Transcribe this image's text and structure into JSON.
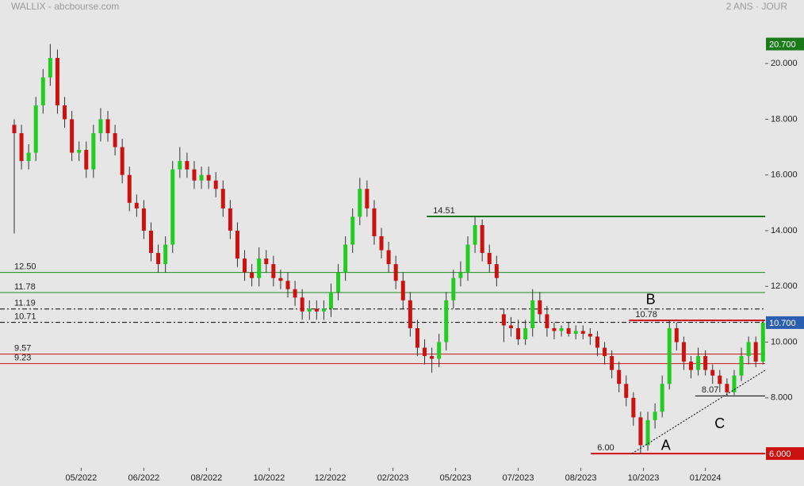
{
  "chart_data": {
    "type": "candlestick",
    "title": "WALLIX - abcbourse.com",
    "subtitle": "2 ANS · JOUR",
    "up_color": "#22cc22",
    "down_color": "#cc1111",
    "xlim": [
      -1.98,
      104.3
    ],
    "ylim": [
      5.49,
      22.28
    ],
    "xticks": [
      {
        "value": 9.3,
        "label": "05/2022"
      },
      {
        "value": 18.0,
        "label": "06/2022"
      },
      {
        "value": 26.7,
        "label": "08/2022"
      },
      {
        "value": 35.4,
        "label": "10/2022"
      },
      {
        "value": 43.9,
        "label": "12/2022"
      },
      {
        "value": 52.6,
        "label": "02/2023"
      },
      {
        "value": 61.3,
        "label": "05/2023"
      },
      {
        "value": 70.0,
        "label": "07/2023"
      },
      {
        "value": 78.7,
        "label": "08/2023"
      },
      {
        "value": 87.4,
        "label": "10/2023"
      },
      {
        "value": 96.0,
        "label": "01/2024"
      }
    ],
    "yticks": [
      {
        "value": 8,
        "label": "8.000"
      },
      {
        "value": 10,
        "label": "10.000"
      },
      {
        "value": 12,
        "label": "12.000"
      },
      {
        "value": 14,
        "label": "14.000"
      },
      {
        "value": 16,
        "label": "16.000"
      },
      {
        "value": 18,
        "label": "18.000"
      },
      {
        "value": 20,
        "label": "20.000"
      }
    ],
    "ohlc": {
      "open": [
        17.8,
        17.5,
        16.5,
        16.8,
        18.5,
        19.5,
        20.2,
        18.5,
        18.0,
        16.8,
        16.9,
        16.2,
        17.5,
        18.0,
        17.5,
        17.0,
        16.0,
        15.0,
        14.8,
        14.0,
        13.2,
        12.8,
        13.5,
        16.2,
        16.5,
        16.2,
        15.8,
        16.0,
        15.8,
        15.5,
        14.8,
        14.0,
        13.0,
        12.5,
        12.3,
        13.0,
        12.8,
        12.3,
        12.2,
        11.9,
        11.6,
        11.1,
        11.2,
        11.1,
        11.2,
        11.8,
        12.5,
        13.5,
        14.5,
        15.5,
        14.8,
        13.8,
        13.3,
        12.8,
        12.2,
        11.5,
        10.5,
        9.8,
        9.5,
        9.4,
        10.0,
        11.5,
        12.3,
        12.5,
        13.5,
        14.2,
        13.2,
        12.8,
        11.0,
        10.6,
        10.5,
        10.1,
        10.5,
        11.5,
        11.0,
        10.5,
        10.4,
        10.5,
        10.3,
        10.4,
        10.3,
        10.2,
        9.8,
        9.5,
        9.0,
        8.5,
        8.0,
        7.3,
        6.3,
        7.2,
        7.5,
        8.5,
        10.5,
        10.0,
        9.3,
        9.0,
        9.5,
        9.0,
        8.8,
        8.5,
        8.2,
        8.8,
        9.5,
        10.0,
        9.3
      ],
      "high": [
        18.0,
        17.8,
        17.1,
        18.8,
        19.8,
        20.7,
        20.5,
        18.8,
        18.3,
        17.2,
        17.2,
        17.8,
        18.4,
        18.3,
        17.8,
        17.3,
        16.3,
        15.3,
        15.1,
        14.3,
        13.5,
        13.8,
        16.5,
        17.0,
        16.8,
        16.5,
        16.3,
        16.3,
        16.1,
        15.8,
        15.1,
        14.3,
        13.3,
        12.8,
        13.4,
        13.3,
        13.1,
        12.6,
        12.5,
        12.2,
        11.9,
        11.5,
        11.5,
        11.5,
        12.1,
        12.8,
        13.8,
        14.8,
        15.9,
        15.8,
        15.1,
        14.1,
        13.6,
        13.1,
        12.5,
        11.8,
        10.8,
        10.1,
        9.8,
        10.3,
        11.8,
        12.6,
        12.9,
        13.8,
        14.5,
        14.4,
        13.5,
        13.1,
        11.2,
        10.9,
        10.8,
        10.8,
        11.9,
        11.8,
        11.3,
        10.7,
        10.6,
        10.7,
        10.6,
        10.6,
        10.5,
        10.4,
        10.0,
        9.7,
        9.3,
        8.8,
        8.2,
        7.5,
        7.5,
        7.8,
        8.8,
        10.78,
        10.7,
        10.2,
        9.5,
        9.8,
        9.7,
        9.2,
        9.0,
        8.7,
        9.0,
        9.8,
        10.2,
        10.2,
        10.8
      ],
      "low": [
        13.9,
        16.2,
        16.2,
        16.5,
        18.2,
        19.2,
        18.2,
        17.7,
        16.5,
        16.5,
        15.9,
        15.9,
        17.2,
        17.2,
        16.7,
        15.7,
        14.7,
        14.5,
        13.7,
        12.9,
        12.5,
        12.5,
        13.2,
        15.9,
        15.9,
        15.5,
        15.5,
        15.5,
        15.2,
        14.5,
        13.7,
        12.7,
        12.2,
        12.0,
        12.0,
        12.5,
        12.0,
        11.9,
        11.6,
        11.3,
        10.8,
        10.8,
        10.8,
        10.8,
        10.9,
        11.5,
        12.2,
        13.2,
        14.2,
        14.5,
        13.5,
        13.0,
        12.5,
        11.9,
        11.2,
        10.2,
        9.5,
        9.2,
        8.9,
        9.1,
        9.7,
        11.2,
        12.0,
        12.2,
        13.2,
        12.9,
        12.5,
        12.0,
        10.0,
        10.2,
        9.9,
        9.9,
        10.2,
        10.7,
        10.2,
        10.1,
        10.2,
        10.2,
        10.1,
        10.1,
        9.9,
        9.5,
        9.2,
        8.7,
        8.2,
        7.7,
        7.0,
        6.0,
        6.1,
        6.9,
        7.3,
        8.3,
        9.7,
        9.0,
        8.7,
        8.8,
        8.8,
        8.5,
        8.2,
        8.07,
        8.1,
        8.6,
        9.2,
        9.1,
        9.2
      ],
      "close": [
        17.5,
        16.5,
        16.8,
        18.5,
        19.5,
        20.2,
        18.5,
        18.0,
        16.8,
        16.9,
        16.2,
        17.5,
        18.0,
        17.5,
        17.0,
        16.0,
        15.0,
        14.8,
        14.0,
        13.2,
        12.8,
        13.5,
        16.2,
        16.5,
        16.2,
        15.8,
        16.0,
        15.8,
        15.5,
        14.8,
        14.0,
        13.0,
        12.5,
        12.3,
        13.0,
        12.8,
        12.3,
        12.2,
        11.9,
        11.6,
        11.1,
        11.2,
        11.1,
        11.2,
        11.8,
        12.5,
        13.5,
        14.5,
        15.5,
        14.8,
        13.8,
        13.3,
        12.8,
        12.2,
        11.5,
        10.5,
        9.8,
        9.5,
        9.4,
        10.0,
        11.5,
        12.3,
        12.5,
        13.5,
        14.2,
        13.2,
        12.8,
        12.3,
        10.6,
        10.5,
        10.1,
        10.5,
        11.5,
        11.0,
        10.5,
        10.4,
        10.5,
        10.3,
        10.4,
        10.3,
        10.2,
        9.8,
        9.5,
        9.0,
        8.5,
        8.0,
        7.3,
        6.3,
        7.2,
        7.5,
        8.5,
        10.5,
        10.0,
        9.3,
        9.0,
        9.5,
        9.0,
        8.8,
        8.5,
        8.2,
        8.8,
        9.5,
        10.0,
        9.3,
        10.7
      ]
    },
    "levels": [
      {
        "value": 14.51,
        "color": "#1a7a1a",
        "style": "thick",
        "from": 57.3
      },
      {
        "value": 12.5,
        "label": "12.50",
        "color": "#1a8a1a",
        "style": "solid"
      },
      {
        "value": 11.78,
        "color": "#1a8a1a",
        "style": "solid"
      },
      {
        "value": 11.19,
        "color": "#000000",
        "style": "dashdot"
      },
      {
        "value": 10.71,
        "color": "#000000",
        "style": "dashdot"
      },
      {
        "value": 10.78,
        "color": "#cc1111",
        "style": "thick",
        "from": 85.4
      },
      {
        "value": 9.57,
        "color": "#cc1111",
        "style": "solid"
      },
      {
        "value": 9.23,
        "color": "#cc1111",
        "style": "solid"
      },
      {
        "value": 8.07,
        "color": "#000000",
        "style": "solid",
        "from": 94.6
      },
      {
        "value": 6,
        "label": "6.00",
        "color": "#cc1111",
        "style": "thick",
        "from": 80.1
      }
    ],
    "trendline": {
      "x": [
        85.8,
        104.3
      ],
      "y": [
        6.0,
        8.99
      ],
      "color": "#000000"
    },
    "annotations": [
      {
        "text": "A",
        "x": 90.5,
        "y": 6.26
      },
      {
        "text": "B",
        "x": 88.4,
        "y": 11.5
      },
      {
        "text": "C",
        "x": 98.0,
        "y": 7.05
      }
    ],
    "price_markers": [
      {
        "value": 20.7,
        "label": "20.700",
        "color": "#1a7a1a"
      },
      {
        "value": 10.7,
        "label": "10.700",
        "color": "#2a5fb0"
      },
      {
        "value": 6,
        "label": "6.000",
        "color": "#cc1111"
      }
    ]
  }
}
